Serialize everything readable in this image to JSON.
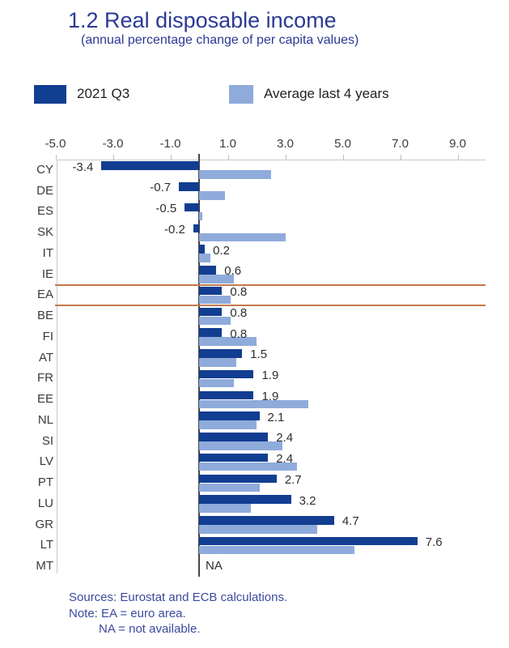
{
  "header": {
    "title": "1.2 Real disposable income",
    "subtitle": "(annual percentage change of per capita values)"
  },
  "legend": [
    {
      "label": "2021 Q3",
      "color": "#123e91"
    },
    {
      "label": "Average last 4 years",
      "color": "#8fabdb"
    }
  ],
  "colors": {
    "dark_series": "#123e91",
    "light_series": "#8fabdb",
    "highlight_rule": "#c4794e",
    "heading_blue": "#2b3a94",
    "footer_blue": "#3b4a9e",
    "axis_text": "#3c3c3c"
  },
  "chart_data": {
    "type": "bar",
    "orientation": "horizontal",
    "title": "1.2 Real disposable income",
    "subtitle": "(annual percentage change of per capita values)",
    "categories": [
      "CY",
      "DE",
      "ES",
      "SK",
      "IT",
      "IE",
      "EA",
      "BE",
      "FI",
      "AT",
      "FR",
      "EE",
      "NL",
      "SI",
      "LV",
      "PT",
      "LU",
      "GR",
      "LT",
      "MT"
    ],
    "series": [
      {
        "name": "2021 Q3",
        "color": "#123e91",
        "values": [
          -3.4,
          -0.7,
          -0.5,
          -0.2,
          0.2,
          0.6,
          0.8,
          0.8,
          0.8,
          1.5,
          1.9,
          1.9,
          2.1,
          2.4,
          2.4,
          2.7,
          3.2,
          4.7,
          7.6,
          null
        ],
        "labels": [
          "-3.4",
          "-0.7",
          "-0.5",
          "-0.2",
          "0.2",
          "0.6",
          "0.8",
          "0.8",
          "0.8",
          "1.5",
          "1.9",
          "1.9",
          "2.1",
          "2.4",
          "2.4",
          "2.7",
          "3.2",
          "4.7",
          "7.6",
          "NA"
        ]
      },
      {
        "name": "Average last 4 years",
        "color": "#8fabdb",
        "values": [
          2.5,
          0.9,
          0.1,
          3.0,
          0.4,
          1.2,
          1.1,
          1.1,
          2.0,
          1.3,
          1.2,
          3.8,
          2.0,
          2.9,
          3.4,
          2.1,
          1.8,
          4.1,
          5.4,
          null
        ]
      }
    ],
    "x_ticks": [
      "-5.0",
      "-3.0",
      "-1.0",
      "1.0",
      "3.0",
      "5.0",
      "7.0",
      "9.0"
    ],
    "x_tick_values": [
      -5,
      -3,
      -1,
      1,
      3,
      5,
      7,
      9
    ],
    "xlim": [
      -5.0,
      10.0
    ],
    "grid": false,
    "legend_position": "top",
    "na_label": "NA",
    "highlight_category": "EA",
    "highlight_color": "#c4794e"
  },
  "footer": {
    "line1": "Sources: Eurostat and ECB calculations.",
    "line2": "Note: EA = euro area.",
    "line3": "NA = not available."
  }
}
